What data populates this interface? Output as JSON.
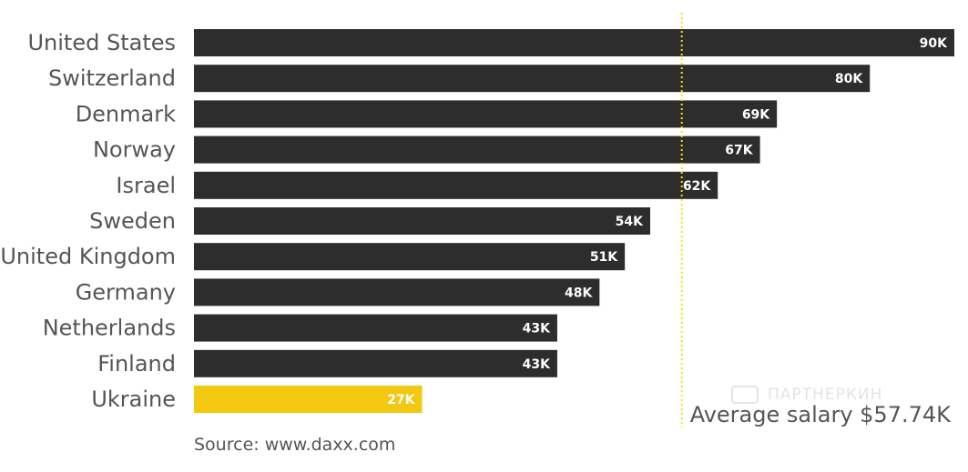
{
  "chart_data": {
    "type": "bar",
    "orientation": "horizontal",
    "categories": [
      "United States",
      "Switzerland",
      "Denmark",
      "Norway",
      "Israel",
      "Sweden",
      "United Kingdom",
      "Germany",
      "Netherlands",
      "Finland",
      "Ukraine"
    ],
    "values": [
      90,
      80,
      69,
      67,
      62,
      54,
      51,
      48,
      43,
      43,
      27
    ],
    "value_labels": [
      "90K",
      "80K",
      "69K",
      "67K",
      "62K",
      "54K",
      "51K",
      "48K",
      "43K",
      "43K",
      "27K"
    ],
    "bar_color": "#2d2d2d",
    "highlight_category": "Ukraine",
    "highlight_color": "#f2c811",
    "xlim": [
      0,
      90
    ],
    "grid": false,
    "reference_line": {
      "value": 57.74,
      "label": "Average salary $57.74K",
      "color": "#f2e600",
      "style": "dotted"
    }
  },
  "source": "Source: www.daxx.com",
  "watermark": "ПАРТНЕРКИН"
}
